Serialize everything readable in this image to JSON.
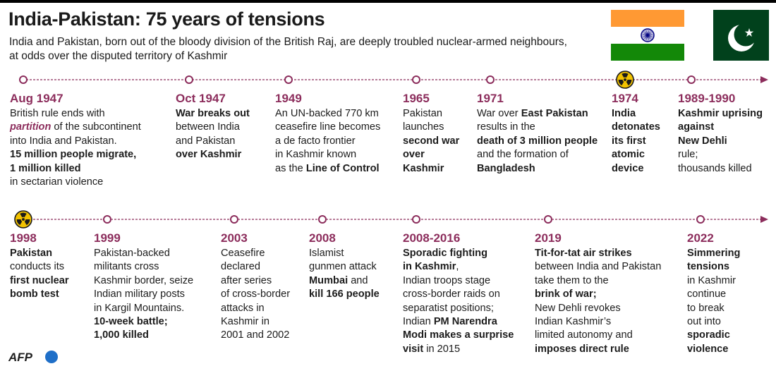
{
  "header": {
    "title": "India-Pakistan: 75 years of tensions",
    "subtitle_lines": [
      "India and Pakistan, born out of the bloody division of the British Raj, are deeply troubled nuclear-armed neighbours,",
      "at odds over the disputed territory of Kashmir"
    ]
  },
  "colors": {
    "accent": "#8c2d5c",
    "india_saffron": "#ff9933",
    "india_green": "#138808",
    "india_chakra": "#000080",
    "pakistan_green": "#01411c",
    "nuclear_yellow": "#f2c200"
  },
  "rows": [
    {
      "events": [
        {
          "date": "Aug 1947",
          "lines": [
            [
              {
                "t": "British rule ends with",
                "s": "n"
              }
            ],
            [
              {
                "t": "partition",
                "s": "i"
              },
              {
                "t": " of the subcontinent",
                "s": "n"
              }
            ],
            [
              {
                "t": "into India and Pakistan.",
                "s": "n"
              }
            ],
            [
              {
                "t": "15 million people migrate,",
                "s": "b"
              }
            ],
            [
              {
                "t": "1 million killed",
                "s": "b"
              }
            ],
            [
              {
                "t": "in sectarian violence",
                "s": "n"
              }
            ]
          ]
        },
        {
          "date": "Oct 1947",
          "lines": [
            [
              {
                "t": "War breaks out",
                "s": "b"
              }
            ],
            [
              {
                "t": "between India",
                "s": "n"
              }
            ],
            [
              {
                "t": "and Pakistan",
                "s": "n"
              }
            ],
            [
              {
                "t": "over Kashmir",
                "s": "b"
              }
            ]
          ]
        },
        {
          "date": "1949",
          "lines": [
            [
              {
                "t": "An UN-backed 770 km",
                "s": "n"
              }
            ],
            [
              {
                "t": "ceasefire line becomes",
                "s": "n"
              }
            ],
            [
              {
                "t": "a de facto frontier",
                "s": "n"
              }
            ],
            [
              {
                "t": "in Kashmir known",
                "s": "n"
              }
            ],
            [
              {
                "t": "as the ",
                "s": "n"
              },
              {
                "t": "Line of Control",
                "s": "b"
              }
            ]
          ]
        },
        {
          "date": "1965",
          "lines": [
            [
              {
                "t": "Pakistan",
                "s": "n"
              }
            ],
            [
              {
                "t": "launches",
                "s": "n"
              }
            ],
            [
              {
                "t": "second war",
                "s": "b"
              }
            ],
            [
              {
                "t": "over",
                "s": "b"
              }
            ],
            [
              {
                "t": "Kashmir",
                "s": "b"
              }
            ]
          ]
        },
        {
          "date": "1971",
          "lines": [
            [
              {
                "t": "War over ",
                "s": "n"
              },
              {
                "t": "East Pakistan",
                "s": "b"
              }
            ],
            [
              {
                "t": "results in the",
                "s": "n"
              }
            ],
            [
              {
                "t": "death of 3 million people",
                "s": "b"
              }
            ],
            [
              {
                "t": "and the formation of",
                "s": "n"
              }
            ],
            [
              {
                "t": "Bangladesh",
                "s": "b"
              }
            ]
          ]
        },
        {
          "date": "1974",
          "nuclear": true,
          "lines": [
            [
              {
                "t": "India",
                "s": "b"
              }
            ],
            [
              {
                "t": "detonates",
                "s": "b"
              }
            ],
            [
              {
                "t": "its first",
                "s": "b"
              }
            ],
            [
              {
                "t": "atomic",
                "s": "b"
              }
            ],
            [
              {
                "t": "device",
                "s": "b"
              }
            ]
          ]
        },
        {
          "date": "1989-1990",
          "lines": [
            [
              {
                "t": "Kashmir uprising",
                "s": "b"
              }
            ],
            [
              {
                "t": "against",
                "s": "b"
              }
            ],
            [
              {
                "t": "New Dehli",
                "s": "b"
              }
            ],
            [
              {
                "t": "rule;",
                "s": "n"
              }
            ],
            [
              {
                "t": "thousands killed",
                "s": "n"
              }
            ]
          ]
        }
      ]
    },
    {
      "events": [
        {
          "date": "1998",
          "nuclear": true,
          "lines": [
            [
              {
                "t": "Pakistan",
                "s": "b"
              }
            ],
            [
              {
                "t": "conducts its",
                "s": "n"
              }
            ],
            [
              {
                "t": "first nuclear",
                "s": "b"
              }
            ],
            [
              {
                "t": "bomb test",
                "s": "b"
              }
            ]
          ]
        },
        {
          "date": "1999",
          "lines": [
            [
              {
                "t": "Pakistan-backed",
                "s": "n"
              }
            ],
            [
              {
                "t": "militants cross",
                "s": "n"
              }
            ],
            [
              {
                "t": "Kashmir border, seize",
                "s": "n"
              }
            ],
            [
              {
                "t": "Indian military posts",
                "s": "n"
              }
            ],
            [
              {
                "t": "in Kargil Mountains.",
                "s": "n"
              }
            ],
            [
              {
                "t": "10-week battle;",
                "s": "b"
              }
            ],
            [
              {
                "t": "1,000 killed",
                "s": "b"
              }
            ]
          ]
        },
        {
          "date": "2003",
          "lines": [
            [
              {
                "t": "Ceasefire",
                "s": "n"
              }
            ],
            [
              {
                "t": "declared",
                "s": "n"
              }
            ],
            [
              {
                "t": "after series",
                "s": "n"
              }
            ],
            [
              {
                "t": "of cross-border",
                "s": "n"
              }
            ],
            [
              {
                "t": "attacks in",
                "s": "n"
              }
            ],
            [
              {
                "t": "Kashmir in",
                "s": "n"
              }
            ],
            [
              {
                "t": "2001 and 2002",
                "s": "n"
              }
            ]
          ]
        },
        {
          "date": "2008",
          "lines": [
            [
              {
                "t": "Islamist",
                "s": "n"
              }
            ],
            [
              {
                "t": "gunmen attack",
                "s": "n"
              }
            ],
            [
              {
                "t": "Mumbai",
                "s": "b"
              },
              {
                "t": " and",
                "s": "n"
              }
            ],
            [
              {
                "t": "kill 166 people",
                "s": "b"
              }
            ]
          ]
        },
        {
          "date": "2008-2016",
          "lines": [
            [
              {
                "t": "Sporadic fighting",
                "s": "b"
              }
            ],
            [
              {
                "t": "in Kashmir",
                "s": "b"
              },
              {
                "t": ",",
                "s": "n"
              }
            ],
            [
              {
                "t": "Indian troops stage",
                "s": "n"
              }
            ],
            [
              {
                "t": "cross-border raids on",
                "s": "n"
              }
            ],
            [
              {
                "t": "separatist positions;",
                "s": "n"
              }
            ],
            [
              {
                "t": "Indian ",
                "s": "n"
              },
              {
                "t": "PM Narendra",
                "s": "b"
              }
            ],
            [
              {
                "t": "Modi makes a surprise",
                "s": "b"
              }
            ],
            [
              {
                "t": "visit",
                "s": "b"
              },
              {
                "t": " in 2015",
                "s": "n"
              }
            ]
          ]
        },
        {
          "date": "2019",
          "lines": [
            [
              {
                "t": "Tit-for-tat air strikes",
                "s": "b"
              }
            ],
            [
              {
                "t": "between India and Pakistan",
                "s": "n"
              }
            ],
            [
              {
                "t": "take them to the",
                "s": "n"
              }
            ],
            [
              {
                "t": "brink of war;",
                "s": "b"
              }
            ],
            [
              {
                "t": "New Dehli revokes",
                "s": "n"
              }
            ],
            [
              {
                "t": "Indian Kashmir’s",
                "s": "n"
              }
            ],
            [
              {
                "t": "limited autonomy and",
                "s": "n"
              }
            ],
            [
              {
                "t": "imposes direct rule",
                "s": "b"
              }
            ]
          ]
        },
        {
          "date": "2022",
          "lines": [
            [
              {
                "t": "Simmering",
                "s": "b"
              }
            ],
            [
              {
                "t": "tensions",
                "s": "b"
              }
            ],
            [
              {
                "t": "in Kashmir",
                "s": "n"
              }
            ],
            [
              {
                "t": "continue",
                "s": "n"
              }
            ],
            [
              {
                "t": "to break",
                "s": "n"
              }
            ],
            [
              {
                "t": "out into",
                "s": "n"
              }
            ],
            [
              {
                "t": "sporadic",
                "s": "b"
              }
            ],
            [
              {
                "t": "violence",
                "s": "b"
              }
            ]
          ]
        }
      ]
    }
  ],
  "footer": {
    "logo_icon": "afp-logo"
  }
}
